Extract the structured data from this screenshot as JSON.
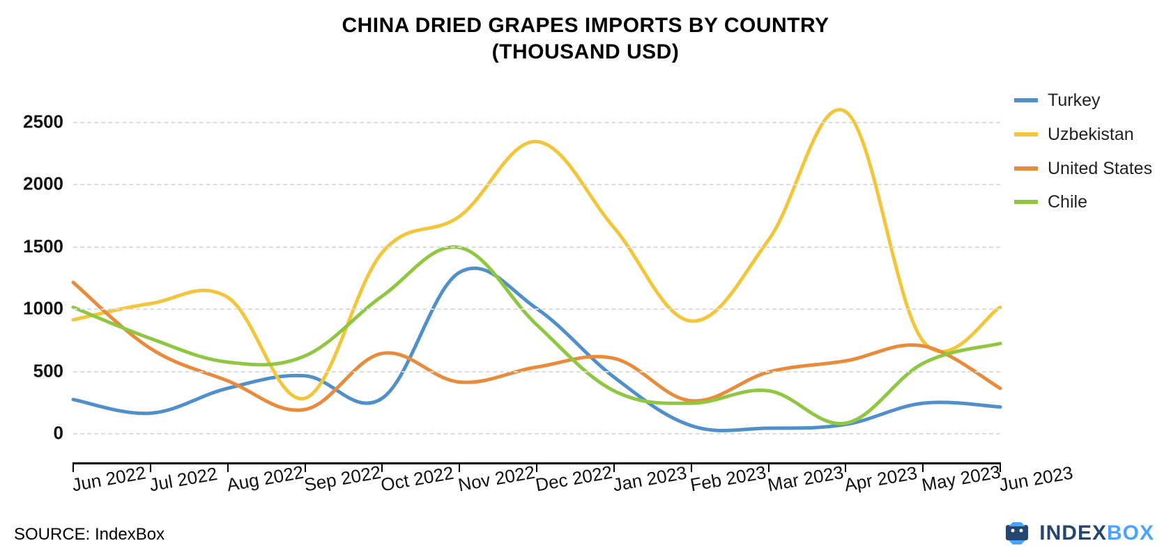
{
  "title_line1": "CHINA DRIED GRAPES IMPORTS BY COUNTRY",
  "title_line2": "(THOUSAND USD)",
  "source_label": "SOURCE: IndexBox",
  "brand_name": "INDEXBOX",
  "brand_color_1": "#25466f",
  "brand_color_2": "#4aa3ff",
  "chart": {
    "type": "line",
    "background_color": "#ffffff",
    "grid_color": "#dcdcdc",
    "axis_color": "#000000",
    "line_width": 5,
    "smooth": true,
    "title_fontsize": 30,
    "label_fontsize": 26,
    "xlim_index": [
      0,
      12
    ],
    "ylim": [
      -100,
      2750
    ],
    "yticks": [
      0,
      500,
      1000,
      1500,
      2000,
      2500
    ],
    "categories": [
      "Jun 2022",
      "Jul 2022",
      "Aug 2022",
      "Sep 2022",
      "Oct 2022",
      "Nov 2022",
      "Dec 2022",
      "Jan 2023",
      "Feb 2023",
      "Mar 2023",
      "Apr 2023",
      "May 2023",
      "Jun 2023"
    ],
    "series": [
      {
        "name": "Turkey",
        "color": "#4f8fca",
        "values": [
          270,
          160,
          360,
          460,
          280,
          1290,
          1000,
          450,
          60,
          40,
          70,
          240,
          210
        ]
      },
      {
        "name": "Uzbekistan",
        "color": "#f3c63a",
        "values": [
          910,
          1040,
          1090,
          280,
          1450,
          1740,
          2340,
          1650,
          900,
          1550,
          2580,
          740,
          1010
        ]
      },
      {
        "name": "United States",
        "color": "#e98b3a",
        "values": [
          1210,
          680,
          420,
          190,
          640,
          410,
          530,
          600,
          260,
          490,
          580,
          700,
          360
        ]
      },
      {
        "name": "Chile",
        "color": "#8fc740",
        "values": [
          1010,
          760,
          570,
          620,
          1100,
          1490,
          870,
          340,
          240,
          340,
          80,
          560,
          720
        ]
      }
    ]
  }
}
